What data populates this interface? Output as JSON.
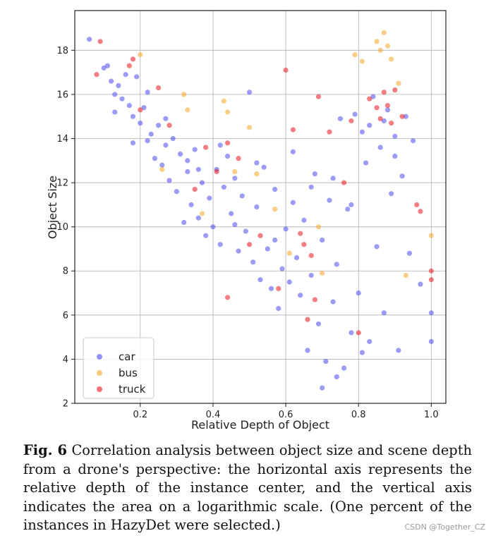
{
  "chart_data": {
    "type": "scatter",
    "xlabel": "Relative Depth of Object",
    "ylabel": "Object Size",
    "xlim": [
      0.02,
      1.04
    ],
    "ylim": [
      2,
      19.8
    ],
    "xticks": [
      0.2,
      0.4,
      0.6,
      0.8,
      1.0
    ],
    "xtick_labels": [
      "0.2",
      "0.4",
      "0.6",
      "0.8",
      "1.0"
    ],
    "yticks": [
      2,
      4,
      6,
      8,
      10,
      12,
      14,
      16,
      18
    ],
    "ytick_labels": [
      "2",
      "4",
      "6",
      "8",
      "10",
      "12",
      "14",
      "16",
      "18"
    ],
    "grid": true,
    "legend_position": "bottom-left",
    "series": [
      {
        "name": "car",
        "color": "#4a4af0",
        "points": [
          [
            0.06,
            18.5
          ],
          [
            0.1,
            17.2
          ],
          [
            0.11,
            17.3
          ],
          [
            0.12,
            16.6
          ],
          [
            0.13,
            16.0
          ],
          [
            0.14,
            16.4
          ],
          [
            0.15,
            15.8
          ],
          [
            0.16,
            16.9
          ],
          [
            0.17,
            15.5
          ],
          [
            0.18,
            15.0
          ],
          [
            0.19,
            16.8
          ],
          [
            0.2,
            14.7
          ],
          [
            0.21,
            15.4
          ],
          [
            0.22,
            13.9
          ],
          [
            0.23,
            14.2
          ],
          [
            0.24,
            13.1
          ],
          [
            0.25,
            14.6
          ],
          [
            0.26,
            12.8
          ],
          [
            0.27,
            13.7
          ],
          [
            0.28,
            12.1
          ],
          [
            0.29,
            14.0
          ],
          [
            0.3,
            11.6
          ],
          [
            0.31,
            13.3
          ],
          [
            0.32,
            10.2
          ],
          [
            0.33,
            12.5
          ],
          [
            0.34,
            11.0
          ],
          [
            0.35,
            13.5
          ],
          [
            0.36,
            10.4
          ],
          [
            0.37,
            12.0
          ],
          [
            0.38,
            9.6
          ],
          [
            0.39,
            11.3
          ],
          [
            0.4,
            10.0
          ],
          [
            0.41,
            12.6
          ],
          [
            0.42,
            9.2
          ],
          [
            0.43,
            11.8
          ],
          [
            0.44,
            13.2
          ],
          [
            0.45,
            10.6
          ],
          [
            0.46,
            12.2
          ],
          [
            0.47,
            8.9
          ],
          [
            0.48,
            11.4
          ],
          [
            0.49,
            9.8
          ],
          [
            0.5,
            16.1
          ],
          [
            0.51,
            8.4
          ],
          [
            0.52,
            10.9
          ],
          [
            0.53,
            7.6
          ],
          [
            0.54,
            12.7
          ],
          [
            0.55,
            9.0
          ],
          [
            0.56,
            7.2
          ],
          [
            0.57,
            11.7
          ],
          [
            0.58,
            6.3
          ],
          [
            0.59,
            8.1
          ],
          [
            0.6,
            9.9
          ],
          [
            0.61,
            7.5
          ],
          [
            0.62,
            11.1
          ],
          [
            0.63,
            8.6
          ],
          [
            0.64,
            6.9
          ],
          [
            0.65,
            10.3
          ],
          [
            0.66,
            4.4
          ],
          [
            0.67,
            7.8
          ],
          [
            0.68,
            12.4
          ],
          [
            0.69,
            5.6
          ],
          [
            0.7,
            9.4
          ],
          [
            0.71,
            3.9
          ],
          [
            0.72,
            11.2
          ],
          [
            0.73,
            6.6
          ],
          [
            0.74,
            8.3
          ],
          [
            0.75,
            14.9
          ],
          [
            0.76,
            3.6
          ],
          [
            0.77,
            10.8
          ],
          [
            0.78,
            5.2
          ],
          [
            0.79,
            15.1
          ],
          [
            0.8,
            7.0
          ],
          [
            0.81,
            14.3
          ],
          [
            0.82,
            12.9
          ],
          [
            0.83,
            4.8
          ],
          [
            0.84,
            15.9
          ],
          [
            0.85,
            9.1
          ],
          [
            0.86,
            13.6
          ],
          [
            0.87,
            6.1
          ],
          [
            0.88,
            15.3
          ],
          [
            0.89,
            11.5
          ],
          [
            0.9,
            14.1
          ],
          [
            0.91,
            4.4
          ],
          [
            0.92,
            12.3
          ],
          [
            0.93,
            15.0
          ],
          [
            0.94,
            8.8
          ],
          [
            0.95,
            13.9
          ],
          [
            0.97,
            7.4
          ],
          [
            1.0,
            4.8
          ],
          [
            1.0,
            6.1
          ],
          [
            0.13,
            15.2
          ],
          [
            0.18,
            13.8
          ],
          [
            0.22,
            16.1
          ],
          [
            0.27,
            14.9
          ],
          [
            0.33,
            13.0
          ],
          [
            0.36,
            12.6
          ],
          [
            0.42,
            13.7
          ],
          [
            0.46,
            10.1
          ],
          [
            0.52,
            12.9
          ],
          [
            0.57,
            9.4
          ],
          [
            0.62,
            13.4
          ],
          [
            0.67,
            11.8
          ],
          [
            0.73,
            12.2
          ],
          [
            0.78,
            11.0
          ],
          [
            0.83,
            14.6
          ],
          [
            0.87,
            14.8
          ],
          [
            0.9,
            13.2
          ],
          [
            0.7,
            2.7
          ],
          [
            0.74,
            3.2
          ],
          [
            0.81,
            4.3
          ]
        ]
      },
      {
        "name": "bus",
        "color": "#f5a623",
        "points": [
          [
            0.2,
            17.8
          ],
          [
            0.32,
            16.0
          ],
          [
            0.33,
            15.3
          ],
          [
            0.43,
            15.7
          ],
          [
            0.44,
            15.2
          ],
          [
            0.5,
            14.5
          ],
          [
            0.52,
            12.4
          ],
          [
            0.57,
            10.8
          ],
          [
            0.61,
            8.8
          ],
          [
            0.69,
            10.0
          ],
          [
            0.7,
            7.9
          ],
          [
            0.79,
            17.8
          ],
          [
            0.81,
            17.5
          ],
          [
            0.85,
            18.4
          ],
          [
            0.86,
            18.0
          ],
          [
            0.87,
            18.8
          ],
          [
            0.88,
            18.2
          ],
          [
            0.89,
            17.6
          ],
          [
            0.91,
            16.5
          ],
          [
            0.93,
            7.8
          ],
          [
            1.0,
            9.6
          ],
          [
            0.37,
            10.6
          ],
          [
            0.26,
            12.6
          ],
          [
            0.46,
            12.5
          ]
        ]
      },
      {
        "name": "truck",
        "color": "#e8141c",
        "points": [
          [
            0.08,
            16.9
          ],
          [
            0.09,
            18.4
          ],
          [
            0.17,
            17.3
          ],
          [
            0.18,
            17.6
          ],
          [
            0.2,
            15.3
          ],
          [
            0.25,
            16.3
          ],
          [
            0.28,
            14.6
          ],
          [
            0.41,
            12.5
          ],
          [
            0.44,
            13.8
          ],
          [
            0.47,
            13.1
          ],
          [
            0.5,
            9.2
          ],
          [
            0.53,
            9.6
          ],
          [
            0.6,
            17.1
          ],
          [
            0.62,
            14.4
          ],
          [
            0.64,
            9.7
          ],
          [
            0.65,
            9.2
          ],
          [
            0.67,
            8.7
          ],
          [
            0.69,
            15.9
          ],
          [
            0.72,
            14.3
          ],
          [
            0.76,
            12.0
          ],
          [
            0.78,
            14.8
          ],
          [
            0.8,
            5.2
          ],
          [
            0.83,
            15.8
          ],
          [
            0.85,
            15.4
          ],
          [
            0.86,
            14.9
          ],
          [
            0.87,
            16.1
          ],
          [
            0.88,
            15.5
          ],
          [
            0.89,
            14.7
          ],
          [
            0.9,
            16.2
          ],
          [
            0.92,
            15.0
          ],
          [
            0.96,
            11.0
          ],
          [
            0.97,
            10.7
          ],
          [
            1.0,
            8.0
          ],
          [
            1.0,
            7.6
          ],
          [
            0.66,
            5.8
          ],
          [
            0.44,
            6.8
          ],
          [
            0.58,
            7.2
          ],
          [
            0.68,
            6.7
          ],
          [
            0.35,
            11.7
          ],
          [
            0.38,
            13.6
          ]
        ]
      }
    ]
  },
  "caption": {
    "label": "Fig. 6",
    "text": " Correlation analysis between object size and scene depth from a drone's perspective: the horizontal axis represents the relative depth of the instance center, and the vertical axis indicates the area on a logarithmic scale. (One percent of the instances in HazyDet were selected.)"
  },
  "watermark": "CSDN @Together_CZ"
}
